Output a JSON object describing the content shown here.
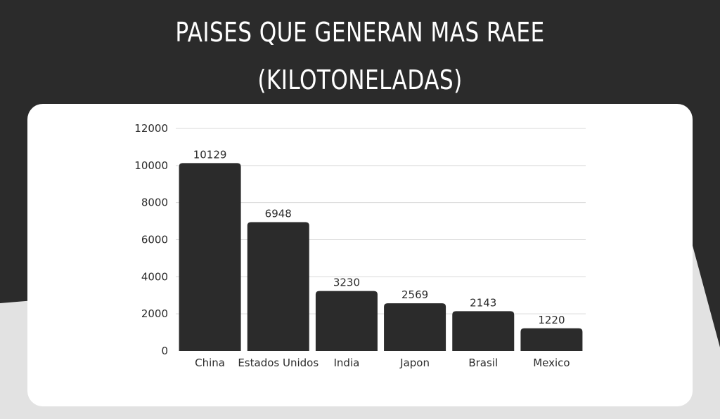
{
  "header": {
    "title_line1": "PAISES QUE GENERAN MAS RAEE",
    "title_line2": "(KILOTONELADAS)"
  },
  "colors": {
    "background_dark": "#2b2b2b",
    "background_light": "#e2e2e2",
    "card": "#ffffff",
    "bar": "#2b2b2b",
    "grid": "#d9d9d9"
  },
  "chart_data": {
    "type": "bar",
    "categories": [
      "China",
      "Estados Unidos",
      "India",
      "Japon",
      "Brasil",
      "Mexico"
    ],
    "values": [
      10129,
      6948,
      3230,
      2569,
      2143,
      1220
    ],
    "data_labels": [
      "10129",
      "6948",
      "3230",
      "2569",
      "2143",
      "1220"
    ],
    "yticks": [
      "0",
      "2000",
      "4000",
      "6000",
      "8000",
      "10000",
      "12000"
    ],
    "ylim": [
      0,
      12000
    ],
    "grid": true,
    "legend": false
  }
}
